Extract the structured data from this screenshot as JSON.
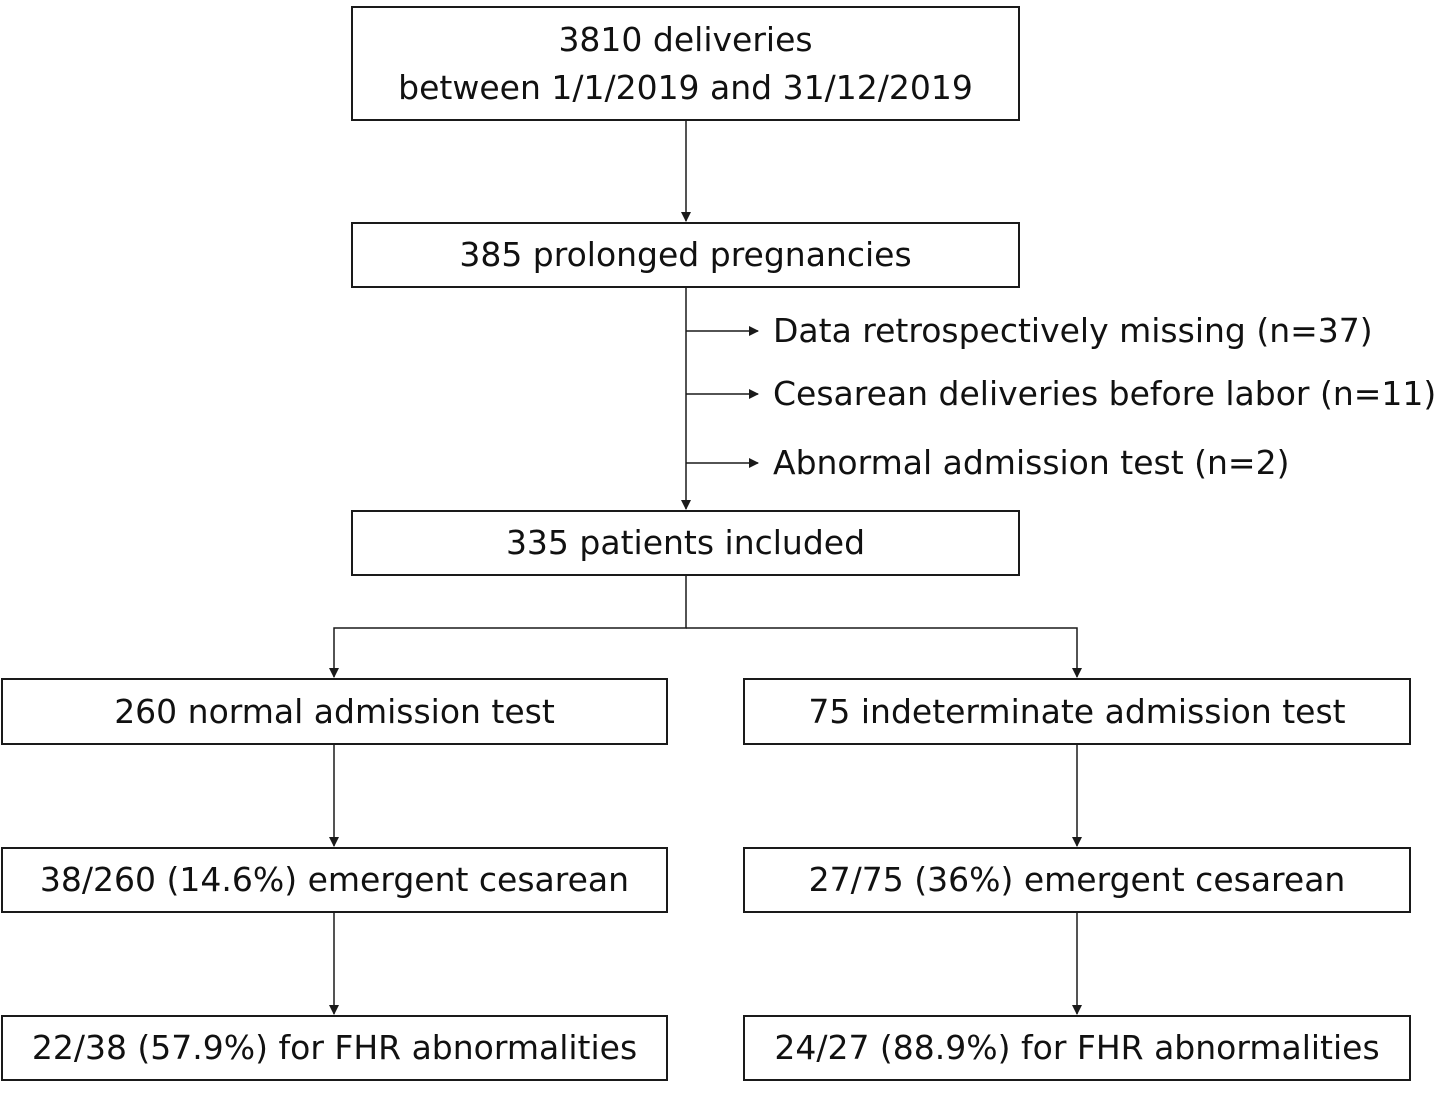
{
  "flowchart": {
    "start": {
      "line1": "3810 deliveries",
      "line2": "between 1/1/2019 and 31/12/2019"
    },
    "prolonged": "385 prolonged pregnancies",
    "exclusions": [
      "Data retrospectively missing (n=37)",
      "Cesarean deliveries before labor (n=11)",
      "Abnormal admission test (n=2)"
    ],
    "included": "335 patients included",
    "left_branch": {
      "group": "260 normal admission test",
      "cesarean": "38/260 (14.6%) emergent cesarean",
      "fhr": "22/38 (57.9%) for FHR abnormalities"
    },
    "right_branch": {
      "group": "75 indeterminate admission test",
      "cesarean": "27/75 (36%) emergent cesarean",
      "fhr": "24/27 (88.9%) for FHR abnormalities"
    },
    "line_color": "#1a1a1a"
  }
}
